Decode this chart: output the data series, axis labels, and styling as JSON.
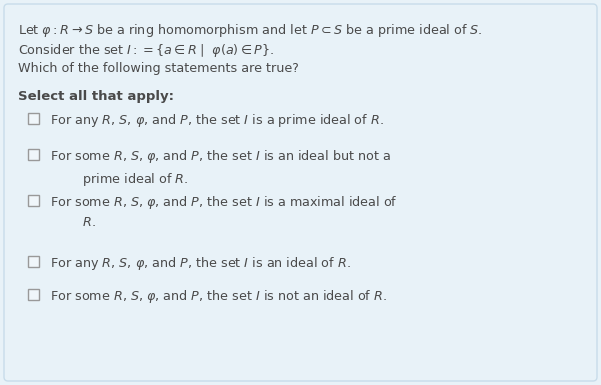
{
  "bg_color": "#e8f2f8",
  "box_color": "#e8f2f8",
  "text_color": "#4a4a4a",
  "header_lines": [
    "Let $\\varphi: R \\rightarrow S$ be a ring homomorphism and let $P \\subset S$ be a prime ideal of $S$.",
    "Consider the set $I := \\{a \\in R\\mid\\ \\varphi(a) \\in P\\}$.",
    "Which of the following statements are true?"
  ],
  "select_label": "Select all that apply:",
  "options": [
    "For any $R$, $S$, $\\varphi$, and $P$, the set $I$ is a prime ideal of $R$.",
    "For some $R$, $S$, $\\varphi$, and $P$, the set $I$ is an ideal but not a\n        prime ideal of $R$.",
    "For some $R$, $S$, $\\varphi$, and $P$, the set $I$ is a maximal ideal of\n        $R$.",
    "For any $R$, $S$, $\\varphi$, and $P$, the set $I$ is an ideal of $R$.",
    "For some $R$, $S$, $\\varphi$, and $P$, the set $I$ is not an ideal of $R$."
  ],
  "font_size_header": 9.2,
  "font_size_select": 9.5,
  "font_size_option": 9.2,
  "figsize": [
    6.01,
    3.85
  ],
  "dpi": 100
}
